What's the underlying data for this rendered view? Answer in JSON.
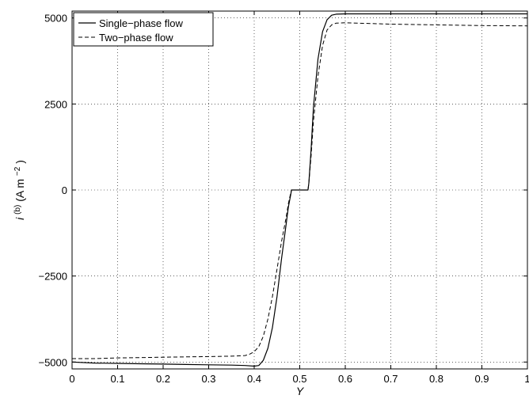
{
  "chart_data": {
    "type": "line",
    "xlabel": "Y",
    "ylabel_main": "i",
    "ylabel_sup": "(b)",
    "ylabel_unit_prefix": " (A m",
    "ylabel_unit_exp": "−2",
    "ylabel_unit_suffix": ")",
    "xlim": [
      0,
      1
    ],
    "ylim": [
      -5200,
      5200
    ],
    "xticks": [
      0,
      0.1,
      0.2,
      0.3,
      0.4,
      0.5,
      0.6,
      0.7,
      0.8,
      0.9,
      1
    ],
    "xtick_labels": [
      "0",
      "0.1",
      "0.2",
      "0.3",
      "0.4",
      "0.5",
      "0.6",
      "0.7",
      "0.8",
      "0.9",
      "1"
    ],
    "yticks": [
      -5000,
      -2500,
      0,
      2500,
      5000
    ],
    "ytick_labels": [
      "−5000",
      "−2500",
      "0",
      "2500",
      "5000"
    ],
    "grid": true,
    "legend_position": "top-left",
    "series": [
      {
        "name": "Single−phase flow",
        "style": "solid",
        "color": "#000000",
        "x": [
          0,
          0.05,
          0.1,
          0.15,
          0.2,
          0.25,
          0.3,
          0.35,
          0.38,
          0.4,
          0.41,
          0.42,
          0.43,
          0.44,
          0.45,
          0.46,
          0.47,
          0.475,
          0.48,
          0.482,
          0.485,
          0.49,
          0.5,
          0.51,
          0.515,
          0.518,
          0.52,
          0.525,
          0.53,
          0.54,
          0.55,
          0.56,
          0.57,
          0.58,
          0.6,
          0.7,
          0.8,
          0.9,
          1.0
        ],
        "y": [
          -5000,
          -5030,
          -5040,
          -5050,
          -5060,
          -5070,
          -5080,
          -5090,
          -5100,
          -5120,
          -5100,
          -4950,
          -4600,
          -4000,
          -3100,
          -2000,
          -1000,
          -500,
          -150,
          0,
          0,
          0,
          0,
          0,
          0,
          0,
          200,
          1200,
          2400,
          3800,
          4600,
          4950,
          5080,
          5110,
          5120,
          5120,
          5120,
          5120,
          5120
        ]
      },
      {
        "name": "Two−phase flow",
        "style": "dashed",
        "color": "#000000",
        "x": [
          0,
          0.05,
          0.1,
          0.15,
          0.2,
          0.25,
          0.3,
          0.35,
          0.38,
          0.39,
          0.4,
          0.41,
          0.42,
          0.43,
          0.44,
          0.45,
          0.46,
          0.47,
          0.475,
          0.48,
          0.482,
          0.485,
          0.49,
          0.5,
          0.51,
          0.515,
          0.518,
          0.52,
          0.525,
          0.53,
          0.54,
          0.55,
          0.56,
          0.57,
          0.58,
          0.6,
          0.65,
          0.7,
          0.8,
          0.9,
          1.0
        ],
        "y": [
          -4900,
          -4900,
          -4880,
          -4870,
          -4860,
          -4850,
          -4840,
          -4830,
          -4810,
          -4770,
          -4700,
          -4550,
          -4250,
          -3750,
          -3100,
          -2300,
          -1500,
          -800,
          -400,
          -100,
          0,
          0,
          0,
          0,
          0,
          0,
          0,
          200,
          1000,
          2000,
          3300,
          4200,
          4650,
          4800,
          4850,
          4860,
          4840,
          4820,
          4800,
          4780,
          4770
        ]
      }
    ]
  }
}
